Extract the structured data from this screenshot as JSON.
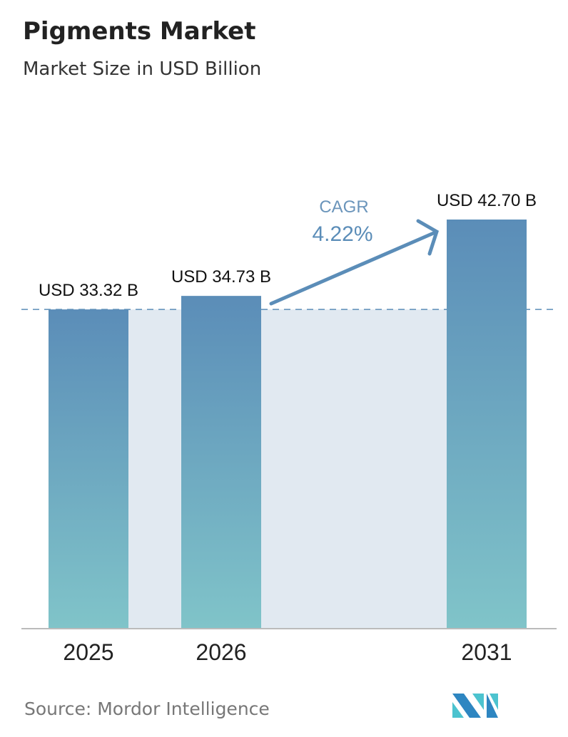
{
  "header": {
    "title": "Pigments Market",
    "subtitle": "Market Size in USD Billion"
  },
  "chart_data": {
    "type": "bar",
    "title": "Pigments Market",
    "subtitle": "Market Size in USD Billion",
    "categories": [
      "2025",
      "2026",
      "2031"
    ],
    "values": [
      33.32,
      34.73,
      42.7
    ],
    "data_labels": [
      "USD 33.32 B",
      "USD 34.73 B",
      "USD 42.70 B"
    ],
    "ylim": [
      0,
      42.7
    ],
    "grid": false,
    "annotation": {
      "label": "CAGR",
      "value": "4.22%"
    },
    "colors": {
      "bar_top": "#5b8db8",
      "bar_bottom": "#80c4c9",
      "band": "#e1e9f1",
      "arrow": "#5b8db8",
      "dashed_line": "#5b8db8"
    }
  },
  "footer": {
    "source": "Source:  Mordor Intelligence",
    "logo_colors": [
      "#2e86c1",
      "#4cc3cf"
    ]
  }
}
